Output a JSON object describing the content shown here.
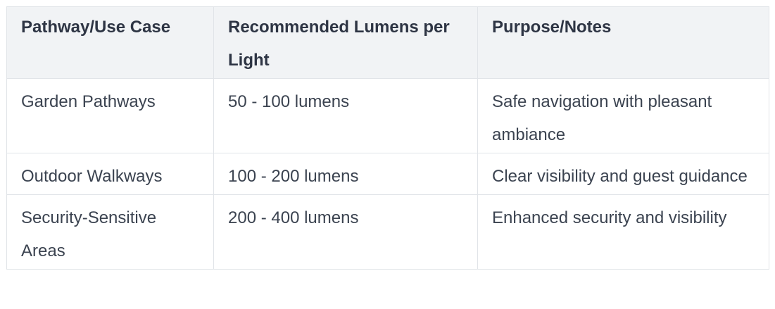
{
  "colors": {
    "header_bg": "#f1f3f5",
    "border_color": "#e1e4e8",
    "header_text": "#2e3544",
    "body_text": "#3b4350",
    "page_bg": "#ffffff"
  },
  "table": {
    "columns": [
      "Pathway/Use Case",
      "Recommended Lumens per Light",
      "Purpose/Notes"
    ],
    "rows": [
      {
        "use_case": "Garden Pathways",
        "lumens": "50 - 100 lumens",
        "purpose": "Safe navigation with pleasant ambiance"
      },
      {
        "use_case": "Outdoor Walkways",
        "lumens": "100 - 200 lumens",
        "purpose": "Clear visibility and guest guidance"
      },
      {
        "use_case": "Security-Sensitive Areas",
        "lumens": "200 - 400 lumens",
        "purpose": "Enhanced security and visibility"
      }
    ]
  }
}
